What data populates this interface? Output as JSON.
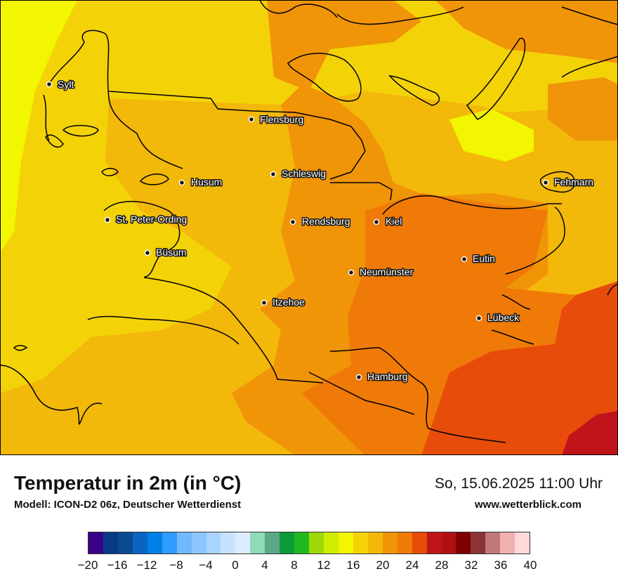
{
  "map": {
    "cities": [
      {
        "name": "Sylt"
      },
      {
        "name": "Flensburg"
      },
      {
        "name": "Schleswig"
      },
      {
        "name": "Husum"
      },
      {
        "name": "Fehmarn"
      },
      {
        "name": "St. Peter-Ording"
      },
      {
        "name": "Rendsburg"
      },
      {
        "name": "Kiel"
      },
      {
        "name": "Büsum"
      },
      {
        "name": "Eutin"
      },
      {
        "name": "Neumünster"
      },
      {
        "name": "Itzehoe"
      },
      {
        "name": "Lübeck"
      },
      {
        "name": "Hamburg"
      }
    ]
  },
  "title": "Temperatur in 2m (in °C)",
  "subtitle": "Modell: ICON-D2 06z, Deutscher Wetterdienst",
  "datetime": "So, 15.06.2025 11:00 Uhr",
  "website": "www.wetterblick.com",
  "legend": {
    "colors": [
      "#3b0088",
      "#0a3a86",
      "#0b4a90",
      "#0a64c4",
      "#0080e8",
      "#2f9cff",
      "#72b8ff",
      "#8cc6ff",
      "#a8d4ff",
      "#c6e2ff",
      "#dcebff",
      "#8fdab8",
      "#5aaa88",
      "#0c9a3a",
      "#20b820",
      "#9ed80a",
      "#d0ec00",
      "#f2f600",
      "#f4d208",
      "#f2b80a",
      "#f09408",
      "#f07a08",
      "#e84c0a",
      "#c0141a",
      "#b01014",
      "#800000",
      "#8c3434",
      "#c07878",
      "#f0b0b0",
      "#ffd8d8"
    ],
    "ticks": [
      "−20",
      "−16",
      "−12",
      "−8",
      "−4",
      "0",
      "4",
      "8",
      "12",
      "16",
      "20",
      "24",
      "28",
      "32",
      "36",
      "40"
    ]
  }
}
